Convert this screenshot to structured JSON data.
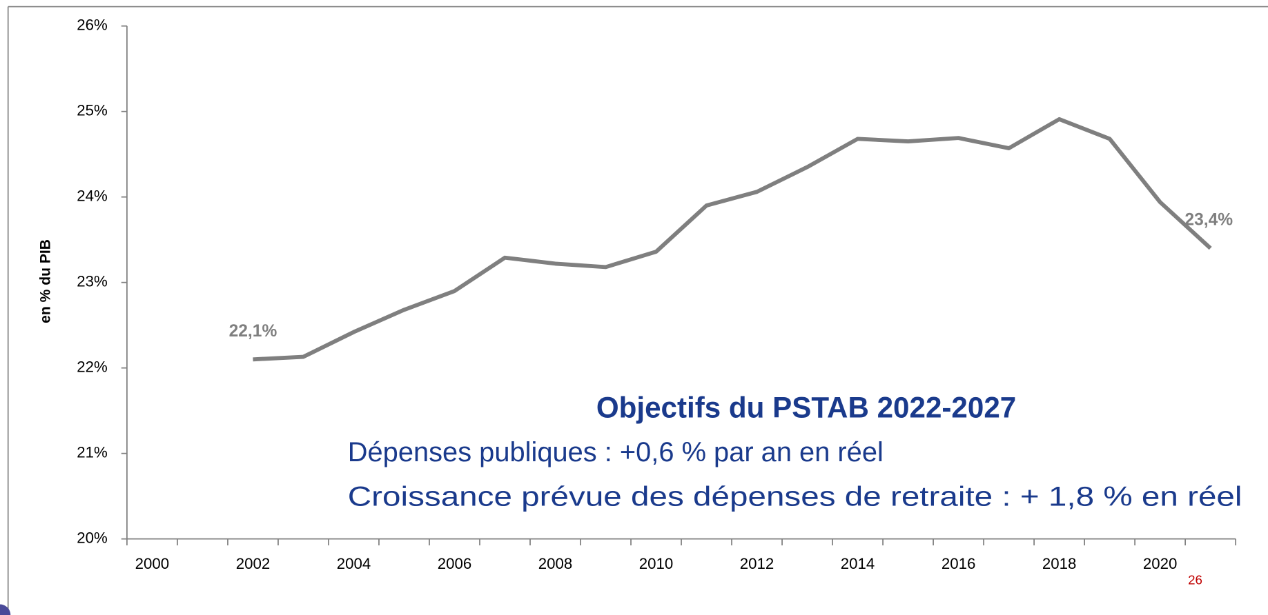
{
  "chart_data": {
    "type": "line",
    "y_label": "en % du PIB",
    "categories": [
      "2000",
      null,
      "2002",
      null,
      "2004",
      null,
      "2006",
      null,
      "2008",
      null,
      "2010",
      null,
      "2012",
      null,
      "2014",
      null,
      "2016",
      null,
      "2018",
      null,
      "2020",
      null
    ],
    "series": [
      {
        "color": "#7f7f7f",
        "values": [
          null,
          null,
          22.1,
          22.13,
          22.42,
          22.68,
          22.9,
          23.29,
          23.22,
          23.18,
          23.36,
          23.9,
          24.06,
          24.35,
          24.68,
          24.65,
          24.69,
          24.57,
          24.91,
          24.68,
          23.94,
          23.4
        ],
        "value_labels": [
          null,
          null,
          "22,1%",
          null,
          null,
          null,
          null,
          null,
          null,
          null,
          null,
          null,
          null,
          null,
          null,
          null,
          null,
          null,
          null,
          null,
          null,
          "23,4%"
        ]
      }
    ],
    "ylim": [
      20,
      26
    ],
    "yticks": [
      {
        "value": 20,
        "label": "20%"
      },
      {
        "value": 21,
        "label": "21%"
      },
      {
        "value": 22,
        "label": "22%"
      },
      {
        "value": 23,
        "label": "23%"
      },
      {
        "value": 24,
        "label": "24%"
      },
      {
        "value": 25,
        "label": "25%"
      },
      {
        "value": 26,
        "label": "26%"
      }
    ],
    "annotation": {
      "title": "Objectifs du PSTAB 2022-2027",
      "lines": [
        "Dépenses publiques : +0,6 % par an en réel",
        "Croissance prévue des dépenses de retraite : + 1,8 % en réel"
      ]
    },
    "page_number": "26"
  }
}
